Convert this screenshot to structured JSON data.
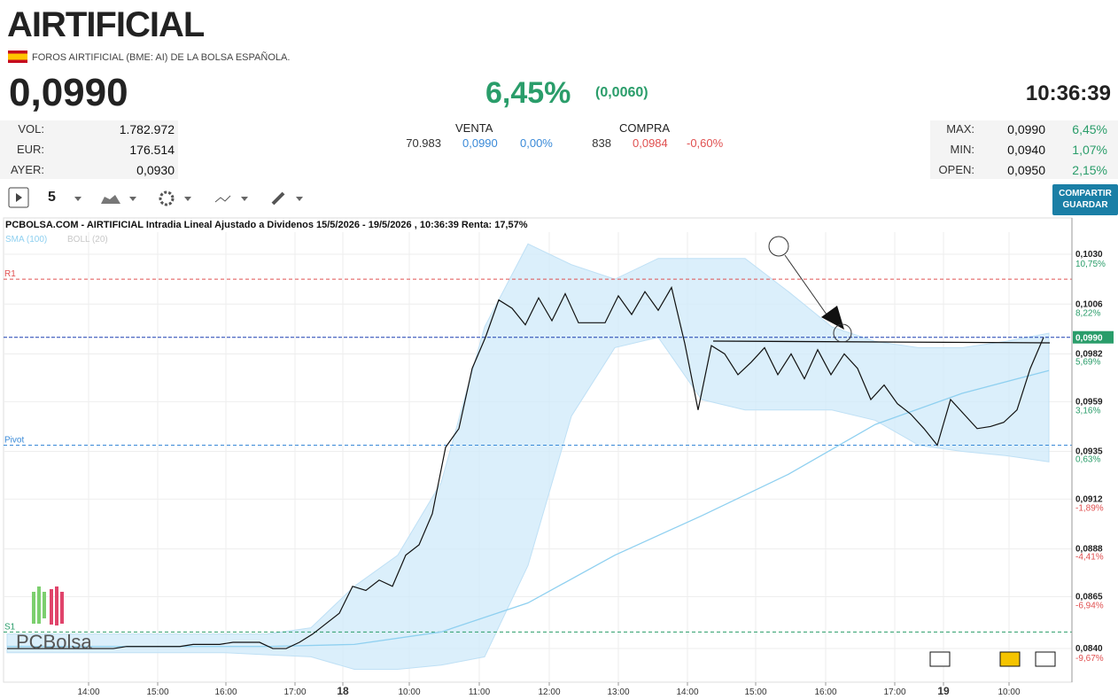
{
  "header": {
    "title": "AIRTIFICIAL",
    "subtitle": "FOROS AIRTIFICIAL (BME: AI) DE LA BOLSA ESPAÑOLA.",
    "price": "0,0990",
    "change_pct": "6,45%",
    "change_abs": "(0,0060)",
    "time": "10:36:39"
  },
  "stats_left": [
    {
      "label": "VOL:",
      "value": "1.782.972"
    },
    {
      "label": "EUR:",
      "value": "176.514"
    },
    {
      "label": "AYER:",
      "value": "0,0930"
    }
  ],
  "venta": {
    "label": "VENTA",
    "qty": "70.983",
    "price": "0,0990",
    "pct": "0,00%"
  },
  "compra": {
    "label": "COMPRA",
    "qty": "838",
    "price": "0,0984",
    "pct": "-0,60%"
  },
  "stats_right": [
    {
      "label": "MAX:",
      "value": "0,0990",
      "pct": "6,45%"
    },
    {
      "label": "MIN:",
      "value": "0,0940",
      "pct": "1,07%"
    },
    {
      "label": "OPEN:",
      "value": "0,0950",
      "pct": "2,15%"
    }
  ],
  "toolbar": {
    "interval": "5",
    "button": [
      "COMPARTIR",
      "GUARDAR"
    ]
  },
  "chart_data": {
    "type": "line",
    "title": "PCBOLSA.COM - AIRTIFICIAL Intradia Lineal Ajustado a Dividenos 15/5/2026 - 19/5/2026 , 10:36:39 Renta: 17,57%",
    "color": "#111111",
    "values": [
      0.084,
      0.084,
      0.084,
      0.084,
      0.084,
      0.084,
      0.084,
      0.084,
      0.084,
      0.0841,
      0.0841,
      0.0841,
      0.0841,
      0.0841,
      0.0842,
      0.0842,
      0.0842,
      0.0843,
      0.0843,
      0.0843,
      0.084,
      0.084,
      0.0843,
      0.0847,
      0.0852,
      0.0857,
      0.087,
      0.0868,
      0.0873,
      0.087,
      0.0885,
      0.089,
      0.0905,
      0.0937,
      0.0946,
      0.0975,
      0.099,
      0.1008,
      0.1004,
      0.0996,
      0.1009,
      0.0998,
      0.1011,
      0.0997,
      0.0997,
      0.0997,
      0.101,
      0.1001,
      0.1012,
      0.1003,
      0.1014,
      0.0987,
      0.0955,
      0.0986,
      0.0982,
      0.0972,
      0.0978,
      0.0985,
      0.0972,
      0.0982,
      0.097,
      0.0984,
      0.0972,
      0.0982,
      0.0975,
      0.096,
      0.0967,
      0.0958,
      0.0953,
      0.0946,
      0.0938,
      0.096,
      0.0953,
      0.0946,
      0.0947,
      0.0949,
      0.0955,
      0.0975,
      0.099
    ],
    "series": [
      {
        "name": "SMA (100)",
        "color": "#8fd0f0",
        "values": [
          0.0841,
          0.0841,
          0.0841,
          0.0841,
          0.0842,
          0.0848,
          0.0862,
          0.0885,
          0.0904,
          0.0924,
          0.0948,
          0.0963,
          0.0974
        ]
      },
      {
        "name": "BOLL (20)",
        "color": "#cfe9fa",
        "upper": [
          0.0847,
          0.0847,
          0.0847,
          0.0847,
          0.0847,
          0.0847,
          0.0847,
          0.085,
          0.087,
          0.0885,
          0.092,
          0.0995,
          0.1035,
          0.1025,
          0.1018,
          0.1028,
          0.1028,
          0.1028,
          0.1012,
          0.0995,
          0.0988,
          0.0985,
          0.0985,
          0.0988,
          0.0992
        ],
        "lower": [
          0.0838,
          0.0838,
          0.0838,
          0.0838,
          0.0838,
          0.0838,
          0.0837,
          0.0836,
          0.083,
          0.083,
          0.0832,
          0.0836,
          0.088,
          0.0952,
          0.0985,
          0.099,
          0.096,
          0.0955,
          0.0955,
          0.0955,
          0.095,
          0.0938,
          0.0935,
          0.0933,
          0.093
        ]
      }
    ],
    "levels": [
      {
        "label": "R1",
        "value": 0.1018,
        "color": "#e05050"
      },
      {
        "label": "Pivot",
        "value": 0.0938,
        "color": "#3a8ad8"
      },
      {
        "label": "S1",
        "value": 0.0848,
        "color": "#2a9d6a"
      }
    ],
    "last": {
      "value": 0.099,
      "label": "0,0990"
    },
    "xlabels": [
      "14:00",
      "15:00",
      "16:00",
      "17:00",
      "18",
      "10:00",
      "11:00",
      "12:00",
      "13:00",
      "14:00",
      "15:00",
      "16:00",
      "17:00",
      "19",
      "10:00"
    ],
    "ylim": [
      0.08238,
      0.10424
    ],
    "yticks": [
      {
        "value": 0.103,
        "label": "0,1030"
      },
      {
        "value": 0.1006,
        "label": "0,1006"
      },
      {
        "value": 0.0982,
        "label": "0,0982"
      },
      {
        "value": 0.0959,
        "label": "0,0959"
      },
      {
        "value": 0.0935,
        "label": "0,0935"
      },
      {
        "value": 0.0912,
        "label": "0,0912"
      },
      {
        "value": 0.0888,
        "label": "0,0888"
      },
      {
        "value": 0.0865,
        "label": "0,0865"
      },
      {
        "value": 0.084,
        "label": "0,0840"
      }
    ],
    "y2lim": [
      -11.42,
      12.09
    ],
    "y2ticks": [
      {
        "value": 10.75,
        "label": "10,75%"
      },
      {
        "value": 8.22,
        "label": "8,22%"
      },
      {
        "value": 5.69,
        "label": "5,69%"
      },
      {
        "value": 3.16,
        "label": "3,16%"
      },
      {
        "value": 0.63,
        "label": "0,63%"
      },
      {
        "value": -1.89,
        "label": "-1,89%"
      },
      {
        "value": -4.41,
        "label": "-4,41%"
      },
      {
        "value": -6.94,
        "label": "-6,94%"
      },
      {
        "value": -9.67,
        "label": "-9,67%"
      }
    ],
    "grid": true
  }
}
